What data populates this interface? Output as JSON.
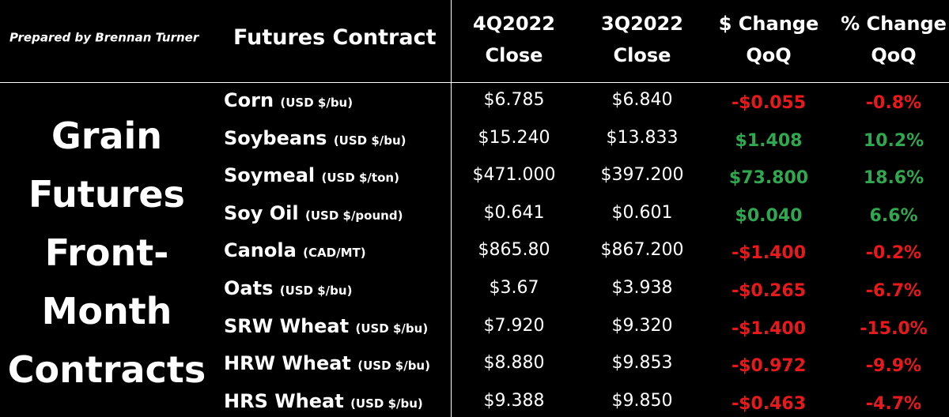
{
  "header": {
    "prepared_by": "Prepared by Brennan Turner",
    "columns": [
      [
        "Futures Contract"
      ],
      [
        "4Q2022",
        "Close"
      ],
      [
        "3Q2022",
        "Close"
      ],
      [
        "$ Change",
        "QoQ"
      ],
      [
        "% Change",
        "QoQ"
      ]
    ]
  },
  "side_label": [
    "Grain",
    "Futures",
    "Front-",
    "Month",
    "Contracts"
  ],
  "colors": {
    "up": "#2fa84f",
    "down": "#e8191c",
    "text": "#ffffff",
    "background": "#000000"
  },
  "table": {
    "rows": [
      {
        "name": "Corn",
        "unit": "(USD $/bu)",
        "q4": "$6.785",
        "q3": "$6.840",
        "change": "-$0.055",
        "pct": "-0.8%"
      },
      {
        "name": "Soybeans",
        "unit": "(USD $/bu)",
        "q4": "$15.240",
        "q3": "$13.833",
        "change": "$1.408",
        "pct": "10.2%"
      },
      {
        "name": "Soymeal",
        "unit": "(USD $/ton)",
        "q4": "$471.000",
        "q3": "$397.200",
        "change": "$73.800",
        "pct": "18.6%"
      },
      {
        "name": "Soy Oil",
        "unit": "(USD $/pound)",
        "q4": "$0.641",
        "q3": "$0.601",
        "change": "$0.040",
        "pct": "6.6%"
      },
      {
        "name": "Canola",
        "unit": "(CAD/MT)",
        "q4": "$865.80",
        "q3": "$867.200",
        "change": "-$1.400",
        "pct": "-0.2%"
      },
      {
        "name": "Oats",
        "unit": "(USD $/bu)",
        "q4": "$3.67",
        "q3": "$3.938",
        "change": "-$0.265",
        "pct": "-6.7%"
      },
      {
        "name": "SRW Wheat",
        "unit": "(USD $/bu)",
        "q4": "$7.920",
        "q3": "$9.320",
        "change": "-$1.400",
        "pct": "-15.0%"
      },
      {
        "name": "HRW Wheat",
        "unit": "(USD $/bu)",
        "q4": "$8.880",
        "q3": "$9.853",
        "change": "-$0.972",
        "pct": "-9.9%"
      },
      {
        "name": "HRS Wheat",
        "unit": "(USD $/bu)",
        "q4": "$9.388",
        "q3": "$9.850",
        "change": "-$0.463",
        "pct": "-4.7%"
      }
    ]
  }
}
